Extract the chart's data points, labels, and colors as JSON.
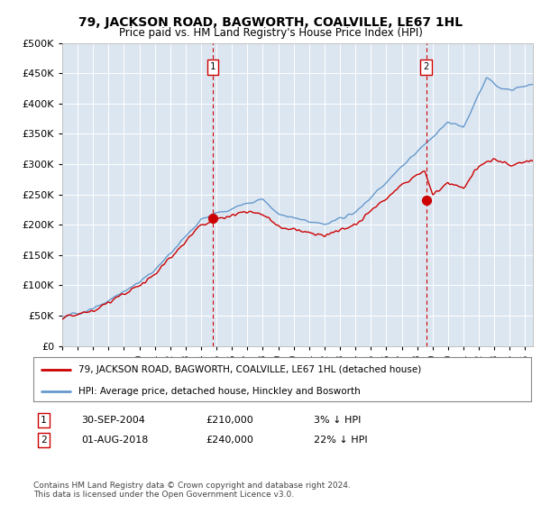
{
  "title": "79, JACKSON ROAD, BAGWORTH, COALVILLE, LE67 1HL",
  "subtitle": "Price paid vs. HM Land Registry's House Price Index (HPI)",
  "legend_line1": "79, JACKSON ROAD, BAGWORTH, COALVILLE, LE67 1HL (detached house)",
  "legend_line2": "HPI: Average price, detached house, Hinckley and Bosworth",
  "annotation1_label": "1",
  "annotation1_date": "30-SEP-2004",
  "annotation1_price": "£210,000",
  "annotation1_pct": "3% ↓ HPI",
  "annotation2_label": "2",
  "annotation2_date": "01-AUG-2018",
  "annotation2_price": "£240,000",
  "annotation2_pct": "22% ↓ HPI",
  "footer": "Contains HM Land Registry data © Crown copyright and database right 2024.\nThis data is licensed under the Open Government Licence v3.0.",
  "plot_bg_color": "#dce6f1",
  "hpi_color": "#6699cc",
  "price_color": "#cc0000",
  "dashed_color": "#cc0000",
  "ylim": [
    0,
    500000
  ],
  "yticks": [
    0,
    50000,
    100000,
    150000,
    200000,
    250000,
    300000,
    350000,
    400000,
    450000,
    500000
  ],
  "sale1_x": 2004.75,
  "sale1_y": 210000,
  "sale2_x": 2018.583,
  "sale2_y": 240000,
  "xmin": 1995,
  "xmax": 2025.5
}
